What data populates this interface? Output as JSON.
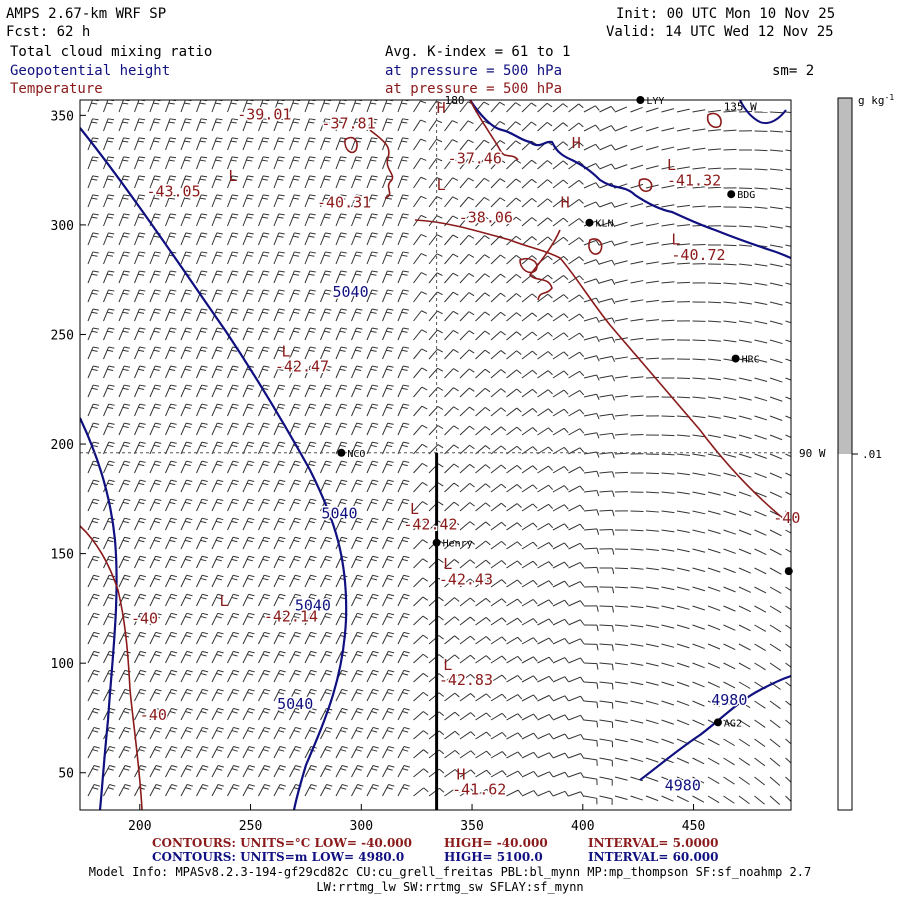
{
  "header": {
    "model": "AMPS 2.67-km WRF SP",
    "forecast": "Fcst:   62 h",
    "init": "Init: 00 UTC Mon 10 Nov 25",
    "valid": "Valid: 14 UTC Wed 12 Nov 25",
    "field1": "Total cloud mixing ratio",
    "field2": "Geopotential height",
    "field3": "Temperature",
    "kindex": "Avg. K-index =  61 to   1",
    "pressure1": "at pressure =  500 hPa",
    "pressure2": "at pressure =  500 hPa",
    "smoothing": "sm= 2"
  },
  "colors": {
    "height_contour": "#101080",
    "temp_contour": "#8b1a1a",
    "text": "#000000"
  },
  "map": {
    "x_ticks": [
      200,
      250,
      300,
      350,
      400,
      450
    ],
    "y_ticks": [
      50,
      100,
      150,
      200,
      250,
      300,
      350
    ],
    "x_range": [
      173,
      494
    ],
    "y_range": [
      33,
      357
    ],
    "meridian_labels": [
      {
        "text": "180",
        "x": 334,
        "y": 357
      },
      {
        "text": "135 W",
        "x": 460,
        "y": 354
      },
      {
        "text": "90 W",
        "x": 494,
        "y": 196
      }
    ],
    "grid_lines": {
      "meridian_x": 334,
      "parallel_y": 196
    },
    "transect": {
      "x": 334,
      "y_from": 33,
      "y_to": 196
    },
    "stations": [
      {
        "name": "LYY",
        "x": 426,
        "y": 357
      },
      {
        "name": "BDG",
        "x": 467,
        "y": 314
      },
      {
        "name": "KLN",
        "x": 403,
        "y": 301
      },
      {
        "name": "HRC",
        "x": 469,
        "y": 239
      },
      {
        "name": "NCO",
        "x": 291,
        "y": 196
      },
      {
        "name": "Henry",
        "x": 334,
        "y": 155
      },
      {
        "name": "AG2",
        "x": 461,
        "y": 73
      },
      {
        "name": "",
        "x": 493,
        "y": 142
      }
    ],
    "height_labels": [
      {
        "text": "5040",
        "x": 287,
        "y": 267
      },
      {
        "text": "5040",
        "x": 282,
        "y": 166
      },
      {
        "text": "5040",
        "x": 270,
        "y": 124
      },
      {
        "text": "5040",
        "x": 262,
        "y": 79
      },
      {
        "text": "4980",
        "x": 458,
        "y": 81
      },
      {
        "text": "4980",
        "x": 437,
        "y": 42
      }
    ],
    "temp_labels": [
      {
        "text": "-39.01",
        "x": 244,
        "y": 348
      },
      {
        "text": "-37.81",
        "x": 282,
        "y": 344
      },
      {
        "text": "-37.46",
        "x": 339,
        "y": 328
      },
      {
        "text": "-41.32",
        "x": 438,
        "y": 318
      },
      {
        "text": "-43.05",
        "x": 203,
        "y": 313
      },
      {
        "text": "-40.31",
        "x": 280,
        "y": 308
      },
      {
        "text": "-38.06",
        "x": 344,
        "y": 301
      },
      {
        "text": "-40.72",
        "x": 440,
        "y": 284
      },
      {
        "text": "-42.47",
        "x": 261,
        "y": 233
      },
      {
        "text": "-42.42",
        "x": 319,
        "y": 161
      },
      {
        "text": "-42.43",
        "x": 335,
        "y": 136
      },
      {
        "text": "-40",
        "x": 486,
        "y": 164
      },
      {
        "text": "-42.14",
        "x": 256,
        "y": 119
      },
      {
        "text": "-40",
        "x": 196,
        "y": 118
      },
      {
        "text": "-42.83",
        "x": 335,
        "y": 90
      },
      {
        "text": "-40",
        "x": 200,
        "y": 74
      },
      {
        "text": "-41.62",
        "x": 341,
        "y": 40
      }
    ],
    "hl_labels": [
      {
        "text": "H",
        "x": 334,
        "y": 351
      },
      {
        "text": "H",
        "x": 395,
        "y": 335
      },
      {
        "text": "L",
        "x": 438,
        "y": 325
      },
      {
        "text": "H",
        "x": 390,
        "y": 308
      },
      {
        "text": "L",
        "x": 334,
        "y": 316
      },
      {
        "text": "L",
        "x": 240,
        "y": 320
      },
      {
        "text": "L",
        "x": 440,
        "y": 291
      },
      {
        "text": "L",
        "x": 264,
        "y": 240
      },
      {
        "text": "L",
        "x": 322,
        "y": 168
      },
      {
        "text": "L",
        "x": 337,
        "y": 143
      },
      {
        "text": "L",
        "x": 236,
        "y": 126
      },
      {
        "text": "L",
        "x": 337,
        "y": 97
      },
      {
        "text": "H",
        "x": 343,
        "y": 47
      }
    ]
  },
  "colorbar": {
    "units": "g kg",
    "units_sup": "-1",
    "label": ".01"
  },
  "footer": {
    "temp": {
      "a": "CONTOURS:  UNITS=°C  LOW=  -40.000",
      "b": "HIGH=  -40.000",
      "c": "INTERVAL=   5.0000"
    },
    "height": {
      "a": "CONTOURS:  UNITS=m  LOW=   4980.0",
      "b": "HIGH=   5100.0",
      "c": "INTERVAL=   60.000"
    },
    "model_info_1": "Model Info: MPASv8.2.3-194-gf29cd82c CU:cu_grell_freitas PBL:bl_mynn MP:mp_thompson SF:sf_noahmp 2.7",
    "model_info_2": "LW:rrtmg_lw SW:rrtmg_sw SFLAY:sf_mynn"
  }
}
